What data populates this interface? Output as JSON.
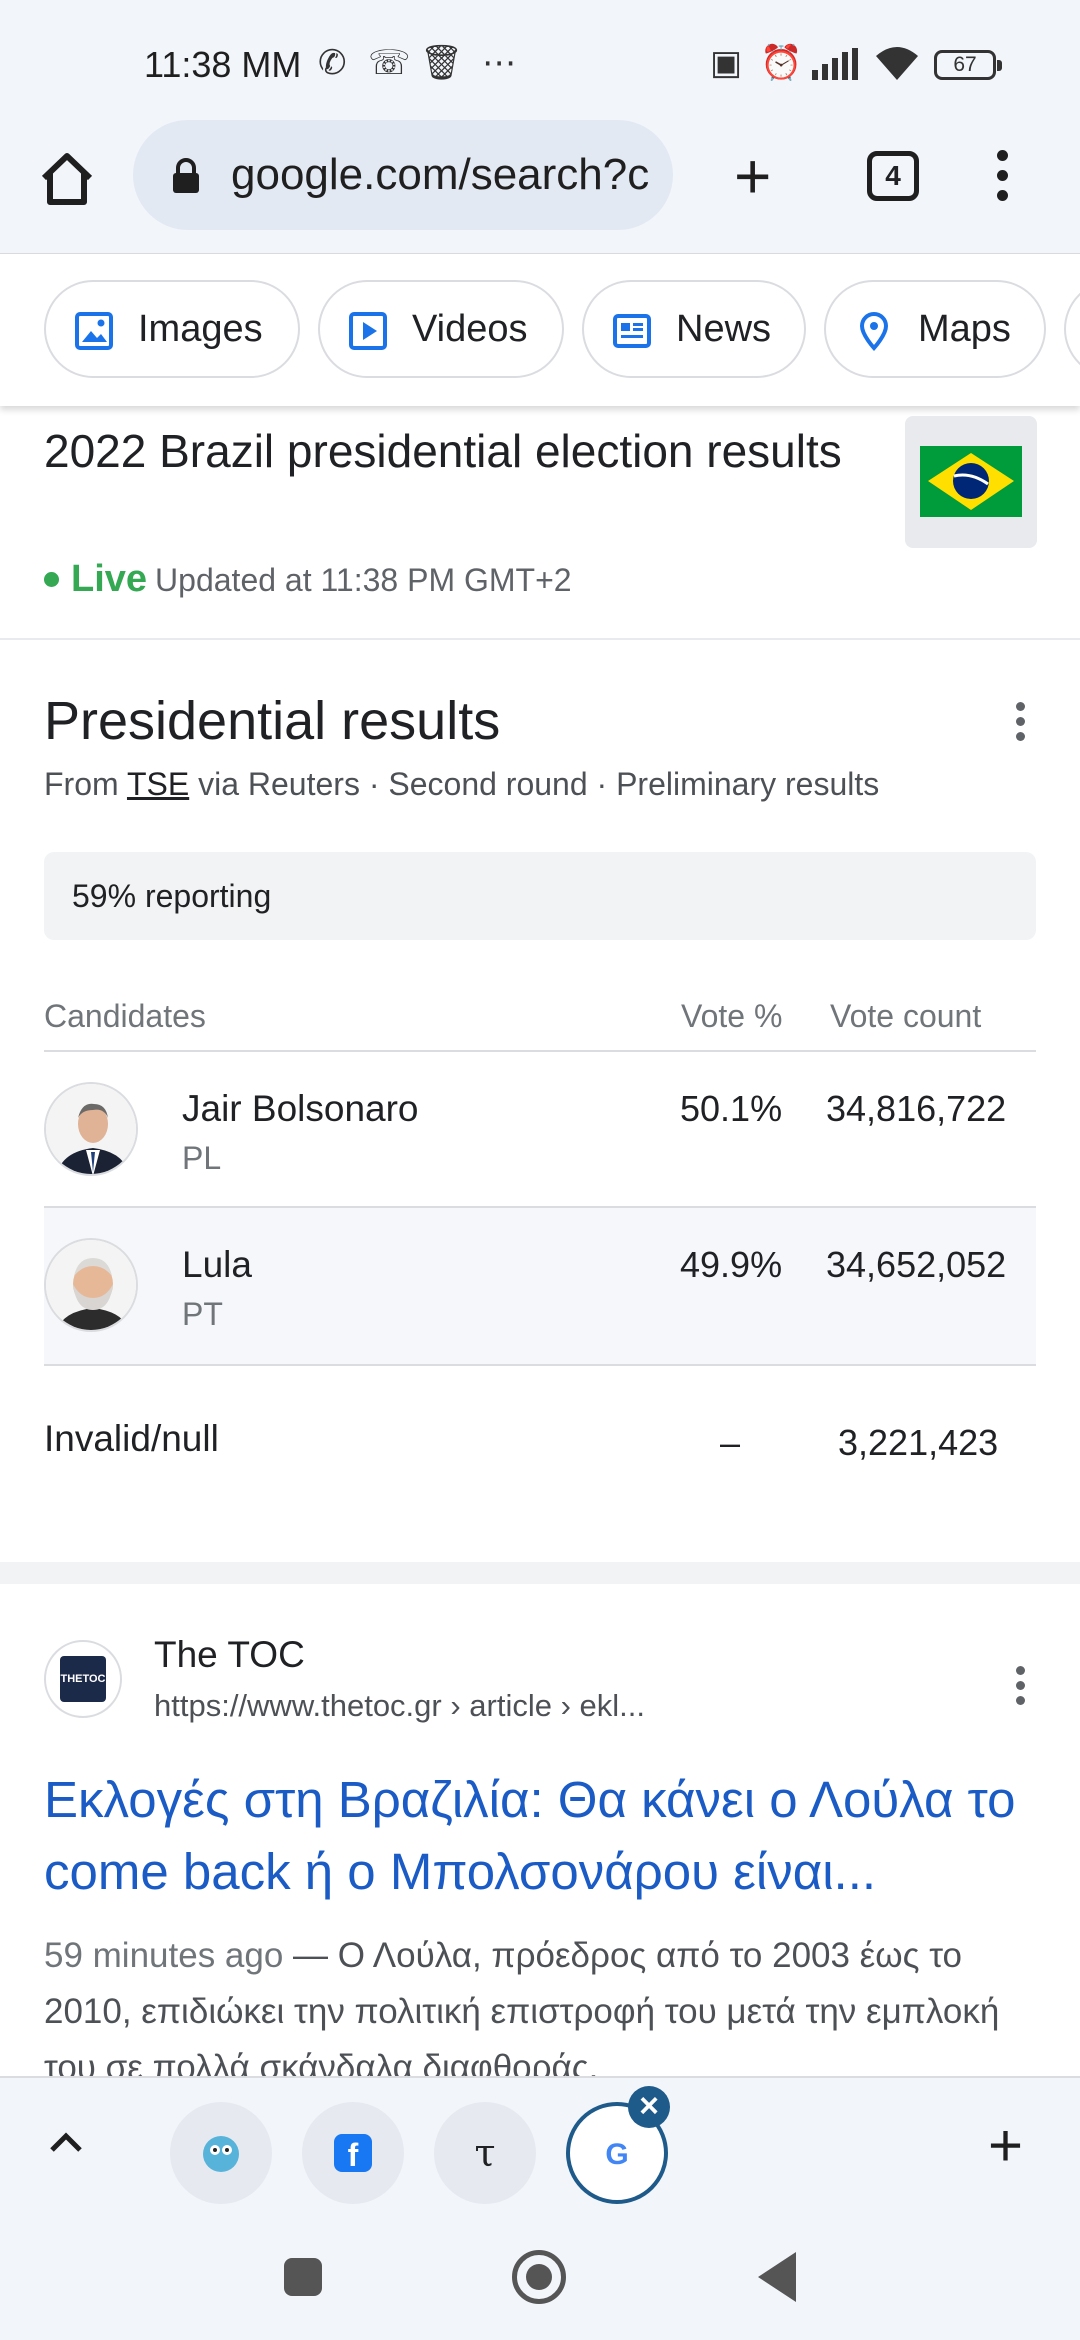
{
  "status_bar": {
    "time": "11:38 MM",
    "battery": "67"
  },
  "browser": {
    "url": "google.com/search?c",
    "tab_count": "4"
  },
  "filter_chips": [
    {
      "label": "Images",
      "icon": "images-icon"
    },
    {
      "label": "Videos",
      "icon": "videos-icon"
    },
    {
      "label": "News",
      "icon": "news-icon"
    },
    {
      "label": "Maps",
      "icon": "maps-icon"
    }
  ],
  "election": {
    "title": "2022 Brazil presidential election results",
    "live_label": "Live",
    "updated": "Updated at 11:38 PM GMT+2",
    "flag_icon": "brazil-flag-icon"
  },
  "results": {
    "heading": "Presidential results",
    "source_prefix": "From",
    "source_link": "TSE",
    "source_rest": "via Reuters · Second round · Preliminary results",
    "reporting": "59% reporting",
    "columns": {
      "candidates": "Candidates",
      "vote_pct": "Vote %",
      "vote_count": "Vote count"
    },
    "candidates": [
      {
        "name": "Jair Bolsonaro",
        "party": "PL",
        "pct": "50.1%",
        "count": "34,816,722"
      },
      {
        "name": "Lula",
        "party": "PT",
        "pct": "49.9%",
        "count": "34,652,052"
      }
    ],
    "invalid": {
      "label": "Invalid/null",
      "pct": "–",
      "count": "3,221,423"
    }
  },
  "search_result": {
    "site_name": "The TOC",
    "favicon_text": "THETOC",
    "url": "https://www.thetoc.gr › article › ekl...",
    "title": "Εκλογές στη Βραζιλία: Θα κάνει ο Λούλα το come back ή ο Μπολσονάρου είναι...",
    "time": "59 minutes ago",
    "snippet": " — Ο Λούλα, πρόεδρος από το 2003 έως το 2010, επιδιώκει την πολιτική επιστροφή του μετά την εμπλοκή του σε πολλά σκάνδαλα διαφθοράς."
  },
  "tab_strip": {
    "tabs": [
      {
        "icon": "app-tab-icon",
        "glyph": "🐙"
      },
      {
        "icon": "facebook-tab-icon",
        "glyph": "f"
      },
      {
        "icon": "thetoc-tab-icon",
        "glyph": "τ"
      },
      {
        "icon": "google-tab-icon",
        "glyph": "G"
      }
    ],
    "close_glyph": "×",
    "new_tab_glyph": "+"
  },
  "colors": {
    "live_green": "#34a853",
    "link_blue": "#1a5bc5",
    "accent": "#1e5a8a"
  }
}
